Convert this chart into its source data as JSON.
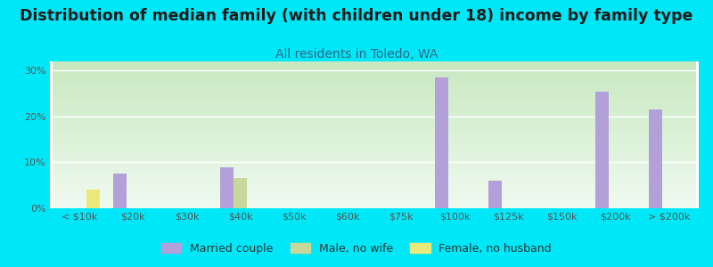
{
  "title": "Distribution of median family (with children under 18) income by family type",
  "subtitle": "All residents in Toledo, WA",
  "categories": [
    "< $10k",
    "$20k",
    "$30k",
    "$40k",
    "$50k",
    "$60k",
    "$75k",
    "$100k",
    "$125k",
    "$150k",
    "$200k",
    "> $200k"
  ],
  "married_couple": [
    0,
    7.5,
    0,
    9.0,
    0,
    0,
    0,
    28.5,
    6.0,
    0,
    25.5,
    21.5
  ],
  "male_no_wife": [
    0,
    0,
    0,
    6.5,
    0,
    0,
    0,
    0,
    0,
    0,
    0,
    0
  ],
  "female_no_husband": [
    4.0,
    0,
    0,
    0,
    0,
    0,
    0,
    0,
    0,
    0,
    0,
    0
  ],
  "married_color": "#b3a0d8",
  "male_color": "#c8d89a",
  "female_color": "#ede87a",
  "bg_outer": "#00e8f8",
  "bg_plot_top_color": "#c8e8c0",
  "bg_plot_bottom_color": "#f0faf0",
  "ylim": [
    0,
    32
  ],
  "bar_width": 0.25,
  "title_fontsize": 12.5,
  "subtitle_fontsize": 10,
  "tick_fontsize": 8,
  "legend_fontsize": 9
}
